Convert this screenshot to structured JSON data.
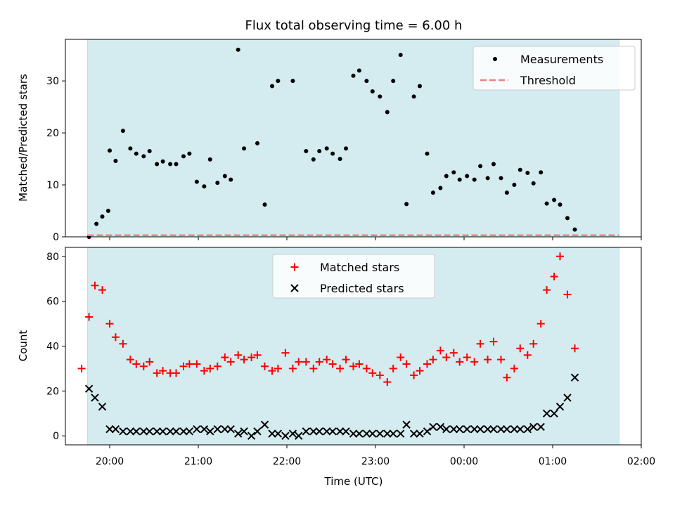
{
  "chart_data": [
    {
      "type": "scatter",
      "title": "Flux total observing time = 6.00 h",
      "ylabel": "Matched/Predicted stars",
      "xlabel": "",
      "ylim": [
        0,
        38
      ],
      "yticks": [
        0,
        10,
        20,
        30
      ],
      "xlim": [
        "19:30",
        "02:00"
      ],
      "legend_position": "top-right",
      "shaded_span": [
        "19:45",
        "01:45"
      ],
      "legend": [
        "Measurements",
        "Threshold"
      ],
      "series": [
        {
          "name": "Measurements",
          "marker": "dot",
          "color": "#000000",
          "points": [
            [
              "19:46",
              0
            ],
            [
              "19:51",
              2.5
            ],
            [
              "19:55",
              3.9
            ],
            [
              "19:59",
              5.0
            ],
            [
              "20:00",
              16.6
            ],
            [
              "20:04",
              14.6
            ],
            [
              "20:09",
              20.4
            ],
            [
              "20:14",
              17.0
            ],
            [
              "20:18",
              16.0
            ],
            [
              "20:23",
              15.5
            ],
            [
              "20:27",
              16.5
            ],
            [
              "20:32",
              14.0
            ],
            [
              "20:36",
              14.5
            ],
            [
              "20:41",
              14.0
            ],
            [
              "20:45",
              14.0
            ],
            [
              "20:50",
              15.5
            ],
            [
              "20:54",
              16.0
            ],
            [
              "20:59",
              10.6
            ],
            [
              "21:04",
              9.7
            ],
            [
              "21:08",
              14.9
            ],
            [
              "21:13",
              10.4
            ],
            [
              "21:18",
              11.7
            ],
            [
              "21:22",
              11.0
            ],
            [
              "21:27",
              36.0
            ],
            [
              "21:31",
              17.0
            ],
            [
              "21:40",
              18.0
            ],
            [
              "21:45",
              6.2
            ],
            [
              "21:50",
              29.0
            ],
            [
              "21:54",
              30.0
            ],
            [
              "22:04",
              30.0
            ],
            [
              "22:13",
              16.5
            ],
            [
              "22:18",
              14.9
            ],
            [
              "22:22",
              16.5
            ],
            [
              "22:27",
              17.0
            ],
            [
              "22:31",
              16.0
            ],
            [
              "22:36",
              15.0
            ],
            [
              "22:40",
              17.0
            ],
            [
              "22:45",
              31.0
            ],
            [
              "22:49",
              32.0
            ],
            [
              "22:54",
              30.0
            ],
            [
              "22:58",
              28.0
            ],
            [
              "23:03",
              27.0
            ],
            [
              "23:08",
              24.0
            ],
            [
              "23:12",
              30.0
            ],
            [
              "23:17",
              35.0
            ],
            [
              "23:21",
              6.3
            ],
            [
              "23:26",
              27.0
            ],
            [
              "23:30",
              29.0
            ],
            [
              "23:35",
              16.0
            ],
            [
              "23:39",
              8.5
            ],
            [
              "23:44",
              9.4
            ],
            [
              "23:48",
              11.7
            ],
            [
              "23:53",
              12.4
            ],
            [
              "23:57",
              11.0
            ],
            [
              "00:02",
              11.7
            ],
            [
              "00:07",
              11.0
            ],
            [
              "00:11",
              13.6
            ],
            [
              "00:16",
              11.3
            ],
            [
              "00:20",
              14.0
            ],
            [
              "00:25",
              11.3
            ],
            [
              "00:29",
              8.5
            ],
            [
              "00:34",
              10.0
            ],
            [
              "00:38",
              12.9
            ],
            [
              "00:43",
              12.3
            ],
            [
              "00:47",
              10.3
            ],
            [
              "00:52",
              12.4
            ],
            [
              "00:56",
              6.4
            ],
            [
              "01:01",
              7.1
            ],
            [
              "01:05",
              6.2
            ],
            [
              "01:10",
              3.6
            ],
            [
              "01:15",
              1.4
            ]
          ]
        },
        {
          "name": "Threshold",
          "type": "line",
          "style": "dashed",
          "color": "#f08080",
          "x": [
            "19:45",
            "01:45"
          ],
          "values": [
            0.3,
            0.3
          ]
        }
      ]
    },
    {
      "type": "scatter",
      "title": "",
      "ylabel": "Count",
      "xlabel": "Time (UTC)",
      "ylim": [
        -4,
        84
      ],
      "yticks": [
        0,
        20,
        40,
        60,
        80
      ],
      "xlim": [
        "19:30",
        "02:00"
      ],
      "xticks": [
        "20:00",
        "21:00",
        "22:00",
        "23:00",
        "00:00",
        "01:00",
        "02:00"
      ],
      "legend_position": "top-center",
      "shaded_span": [
        "19:45",
        "01:45"
      ],
      "legend": [
        "Matched stars",
        "Predicted stars"
      ],
      "series": [
        {
          "name": "Matched stars",
          "marker": "plus",
          "color": "#ff0000",
          "points": [
            [
              "19:41",
              30
            ],
            [
              "19:46",
              53
            ],
            [
              "19:50",
              67
            ],
            [
              "19:55",
              65
            ],
            [
              "20:00",
              50
            ],
            [
              "20:04",
              44
            ],
            [
              "20:09",
              41
            ],
            [
              "20:14",
              34
            ],
            [
              "20:18",
              32
            ],
            [
              "20:23",
              31
            ],
            [
              "20:27",
              33
            ],
            [
              "20:32",
              28
            ],
            [
              "20:36",
              29
            ],
            [
              "20:41",
              28
            ],
            [
              "20:45",
              28
            ],
            [
              "20:50",
              31
            ],
            [
              "20:54",
              32
            ],
            [
              "20:59",
              32
            ],
            [
              "21:04",
              29
            ],
            [
              "21:08",
              30
            ],
            [
              "21:13",
              31
            ],
            [
              "21:18",
              35
            ],
            [
              "21:22",
              33
            ],
            [
              "21:27",
              36
            ],
            [
              "21:31",
              34
            ],
            [
              "21:36",
              35
            ],
            [
              "21:40",
              36
            ],
            [
              "21:45",
              31
            ],
            [
              "21:50",
              29
            ],
            [
              "21:54",
              30
            ],
            [
              "21:59",
              37
            ],
            [
              "22:04",
              30
            ],
            [
              "22:08",
              33
            ],
            [
              "22:13",
              33
            ],
            [
              "22:18",
              30
            ],
            [
              "22:22",
              33
            ],
            [
              "22:27",
              34
            ],
            [
              "22:31",
              32
            ],
            [
              "22:36",
              30
            ],
            [
              "22:40",
              34
            ],
            [
              "22:45",
              31
            ],
            [
              "22:49",
              32
            ],
            [
              "22:54",
              30
            ],
            [
              "22:58",
              28
            ],
            [
              "23:03",
              27
            ],
            [
              "23:08",
              24
            ],
            [
              "23:12",
              30
            ],
            [
              "23:17",
              35
            ],
            [
              "23:21",
              32
            ],
            [
              "23:26",
              27
            ],
            [
              "23:30",
              29
            ],
            [
              "23:35",
              32
            ],
            [
              "23:39",
              34
            ],
            [
              "23:44",
              38
            ],
            [
              "23:48",
              35
            ],
            [
              "23:53",
              37
            ],
            [
              "23:57",
              33
            ],
            [
              "00:02",
              35
            ],
            [
              "00:07",
              33
            ],
            [
              "00:11",
              41
            ],
            [
              "00:16",
              34
            ],
            [
              "00:20",
              42
            ],
            [
              "00:25",
              34
            ],
            [
              "00:29",
              26
            ],
            [
              "00:34",
              30
            ],
            [
              "00:38",
              39
            ],
            [
              "00:43",
              36
            ],
            [
              "00:47",
              41
            ],
            [
              "00:52",
              50
            ],
            [
              "00:56",
              65
            ],
            [
              "01:01",
              71
            ],
            [
              "01:05",
              80
            ],
            [
              "01:10",
              63
            ],
            [
              "01:15",
              39
            ]
          ]
        },
        {
          "name": "Predicted stars",
          "marker": "x",
          "color": "#000000",
          "points": [
            [
              "19:46",
              21
            ],
            [
              "19:50",
              17
            ],
            [
              "19:55",
              13
            ],
            [
              "20:00",
              3
            ],
            [
              "20:04",
              3
            ],
            [
              "20:09",
              2
            ],
            [
              "20:14",
              2
            ],
            [
              "20:18",
              2
            ],
            [
              "20:23",
              2
            ],
            [
              "20:27",
              2
            ],
            [
              "20:32",
              2
            ],
            [
              "20:36",
              2
            ],
            [
              "20:41",
              2
            ],
            [
              "20:45",
              2
            ],
            [
              "20:50",
              2
            ],
            [
              "20:54",
              2
            ],
            [
              "20:59",
              3
            ],
            [
              "21:04",
              3
            ],
            [
              "21:08",
              2
            ],
            [
              "21:13",
              3
            ],
            [
              "21:18",
              3
            ],
            [
              "21:22",
              3
            ],
            [
              "21:27",
              1
            ],
            [
              "21:31",
              2
            ],
            [
              "21:36",
              0
            ],
            [
              "21:40",
              2
            ],
            [
              "21:45",
              5
            ],
            [
              "21:50",
              1
            ],
            [
              "21:54",
              1
            ],
            [
              "21:59",
              0
            ],
            [
              "22:04",
              1
            ],
            [
              "22:08",
              0
            ],
            [
              "22:13",
              2
            ],
            [
              "22:18",
              2
            ],
            [
              "22:22",
              2
            ],
            [
              "22:27",
              2
            ],
            [
              "22:31",
              2
            ],
            [
              "22:36",
              2
            ],
            [
              "22:40",
              2
            ],
            [
              "22:45",
              1
            ],
            [
              "22:49",
              1
            ],
            [
              "22:54",
              1
            ],
            [
              "22:58",
              1
            ],
            [
              "23:03",
              1
            ],
            [
              "23:08",
              1
            ],
            [
              "23:12",
              1
            ],
            [
              "23:17",
              1
            ],
            [
              "23:21",
              5
            ],
            [
              "23:26",
              1
            ],
            [
              "23:30",
              1
            ],
            [
              "23:35",
              2
            ],
            [
              "23:39",
              4
            ],
            [
              "23:44",
              4
            ],
            [
              "23:48",
              3
            ],
            [
              "23:53",
              3
            ],
            [
              "23:57",
              3
            ],
            [
              "00:02",
              3
            ],
            [
              "00:07",
              3
            ],
            [
              "00:11",
              3
            ],
            [
              "00:16",
              3
            ],
            [
              "00:20",
              3
            ],
            [
              "00:25",
              3
            ],
            [
              "00:29",
              3
            ],
            [
              "00:34",
              3
            ],
            [
              "00:38",
              3
            ],
            [
              "00:43",
              3
            ],
            [
              "00:47",
              4
            ],
            [
              "00:52",
              4
            ],
            [
              "00:56",
              10
            ],
            [
              "01:01",
              10
            ],
            [
              "01:05",
              13
            ],
            [
              "01:10",
              17
            ],
            [
              "01:15",
              26
            ]
          ]
        }
      ]
    }
  ],
  "colors": {
    "shade": "#d4ebf0",
    "shade_edge": "#bfe0e8",
    "measurements": "#000000",
    "threshold": "#f08080",
    "matched": "#ff0000",
    "predicted": "#000000"
  }
}
